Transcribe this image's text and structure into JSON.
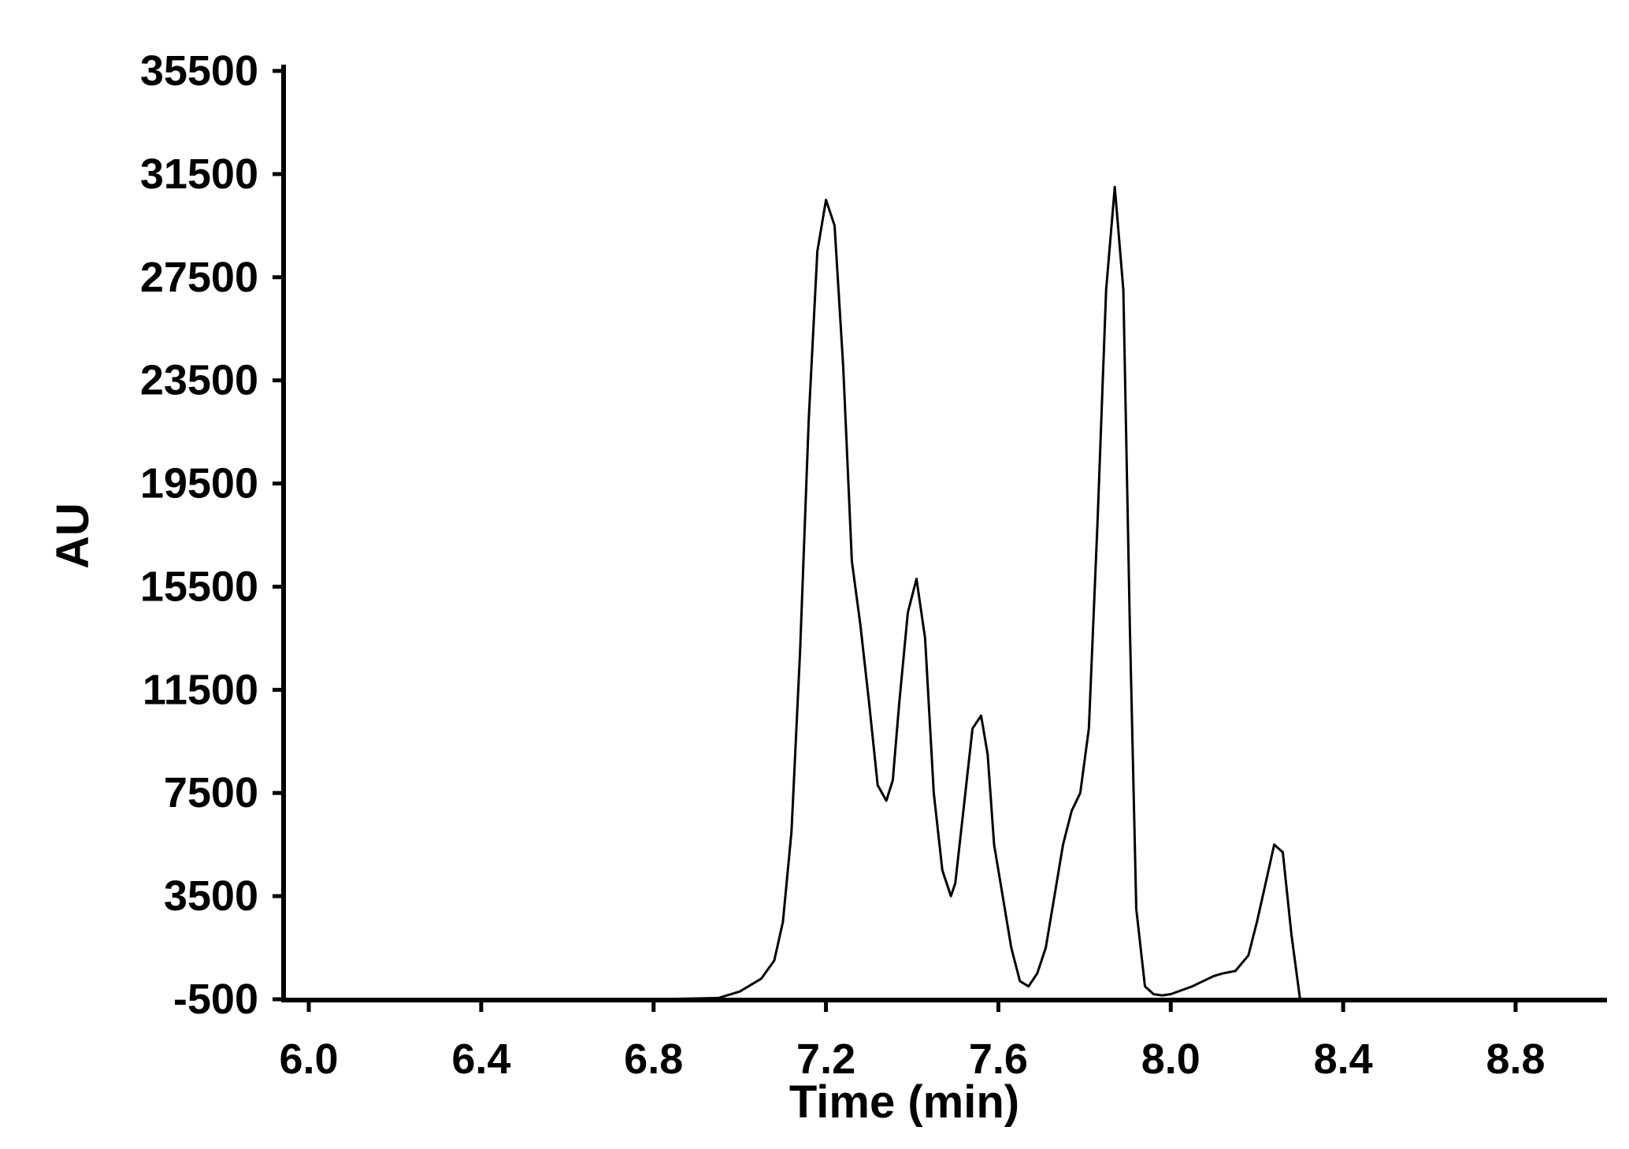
{
  "chart_data": {
    "type": "line",
    "title": "",
    "xlabel": "Time (min)",
    "ylabel": "AU",
    "xlim": [
      6.0,
      9.0
    ],
    "ylim": [
      -500,
      35500
    ],
    "grid": false,
    "legend": "none",
    "x_ticks": [
      6.0,
      6.4,
      6.8,
      7.2,
      7.6,
      8.0,
      8.4,
      8.8
    ],
    "x_tick_labels": [
      "6.0",
      "6.4",
      "6.8",
      "7.2",
      "7.6",
      "8.0",
      "8.4",
      "8.8"
    ],
    "y_ticks": [
      -500,
      3500,
      7500,
      11500,
      15500,
      19500,
      23500,
      27500,
      31500,
      35500
    ],
    "y_tick_labels": [
      "-500",
      "3500",
      "7500",
      "11500",
      "15500",
      "19500",
      "23500",
      "27500",
      "31500",
      "35500"
    ],
    "line_color": "#000000",
    "series": [
      {
        "x": [
          6.0,
          6.2,
          6.4,
          6.6,
          6.8,
          6.95,
          7.0,
          7.05,
          7.08,
          7.1,
          7.12,
          7.14,
          7.16,
          7.18,
          7.2,
          7.22,
          7.24,
          7.26,
          7.28,
          7.3,
          7.32,
          7.34,
          7.355,
          7.37,
          7.39,
          7.41,
          7.43,
          7.45,
          7.47,
          7.49,
          7.5,
          7.52,
          7.54,
          7.56,
          7.575,
          7.59,
          7.61,
          7.63,
          7.65,
          7.67,
          7.69,
          7.71,
          7.73,
          7.75,
          7.77,
          7.79,
          7.81,
          7.83,
          7.85,
          7.87,
          7.89,
          7.905,
          7.92,
          7.94,
          7.96,
          7.98,
          8.0,
          8.05,
          8.1,
          8.12,
          8.15,
          8.18,
          8.2,
          8.22,
          8.24,
          8.26,
          8.28,
          8.3,
          8.32,
          8.4,
          8.6,
          8.8,
          8.95
        ],
        "y": [
          -500,
          -500,
          -500,
          -500,
          -500,
          -450,
          -200,
          300,
          1000,
          2500,
          6000,
          13000,
          22000,
          28500,
          30500,
          29500,
          24000,
          16500,
          14000,
          11000,
          7800,
          7200,
          8000,
          11000,
          14500,
          15800,
          13500,
          7500,
          4500,
          3500,
          4000,
          7000,
          10000,
          10500,
          9000,
          5500,
          3500,
          1500,
          200,
          0,
          500,
          1500,
          3500,
          5500,
          6800,
          7500,
          10000,
          18000,
          27000,
          31000,
          27000,
          14000,
          3000,
          0,
          -300,
          -350,
          -300,
          0,
          400,
          500,
          600,
          1200,
          2500,
          4000,
          5500,
          5200,
          2000,
          -500,
          -500,
          -500,
          -500,
          -500,
          -500
        ]
      }
    ]
  }
}
